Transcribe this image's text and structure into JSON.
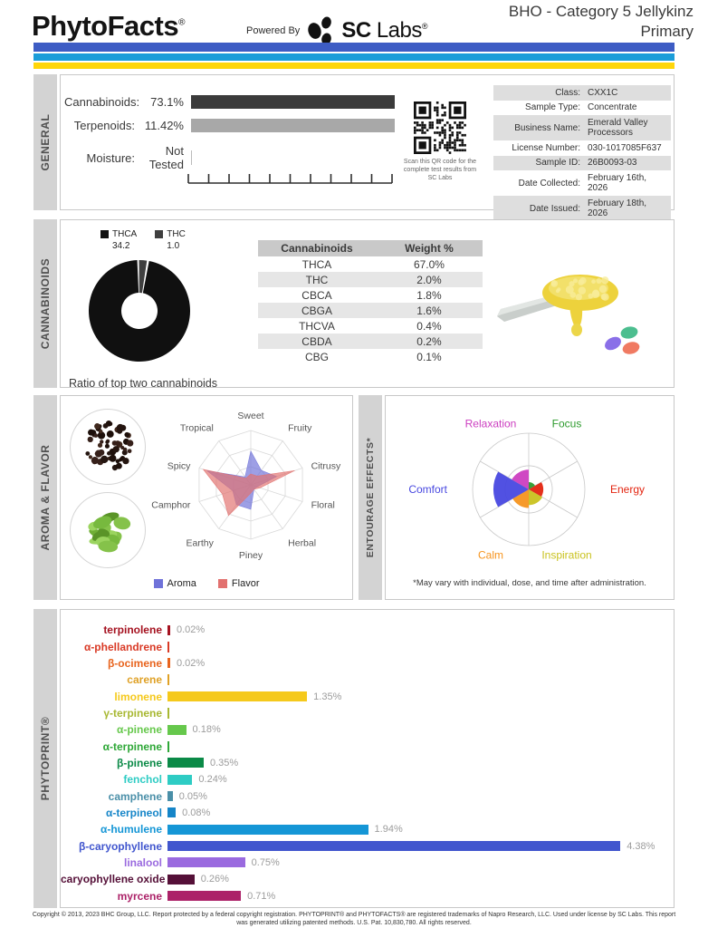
{
  "header": {
    "brand": "PhytoFacts",
    "brand_reg": "®",
    "powered_by": "Powered By",
    "lab_bold": "SC",
    "lab_rest": " Labs",
    "lab_reg": "®",
    "title_line1": "BHO - Category 5 Jellykinz",
    "title_line2": "Primary",
    "stripe_colors": [
      "#3D5CC4",
      "#1B9DD9",
      "#FFD60B"
    ]
  },
  "general": {
    "section_label": "GENERAL",
    "stats": [
      {
        "label": "Cannabinoids:",
        "value": "73.1%"
      },
      {
        "label": "Terpenoids:",
        "value": "11.42%"
      },
      {
        "label": "Moisture:",
        "value": "Not Tested"
      }
    ],
    "cannabinoids_bar_color": "#3B3B3B",
    "terpenoids_bar_color": "#A8A8A8",
    "qr_icon": "qr-code",
    "qr_caption": "Scan this QR code for the complete test results from SC Labs",
    "info": [
      {
        "label": "Class:",
        "value": "CXX1C"
      },
      {
        "label": "Sample Type:",
        "value": "Concentrate"
      },
      {
        "label": "Business Name:",
        "value": "Emerald Valley Processors"
      },
      {
        "label": "License Number:",
        "value": "030-1017085F637"
      },
      {
        "label": "Sample ID:",
        "value": "26B0093-03"
      },
      {
        "label": "Date Collected:",
        "value": "February 16th, 2026"
      },
      {
        "label": "Date Issued:",
        "value": "February 18th, 2026"
      }
    ]
  },
  "cannabinoids": {
    "section_label": "CANNABINOIDS",
    "donut_caption": "Ratio of top two cannabinoids",
    "legend": [
      {
        "name": "THCA",
        "value": "34.2",
        "color": "#101010"
      },
      {
        "name": "THC",
        "value": "1.0",
        "color": "#3F3F3F"
      }
    ],
    "table_headers": [
      "Cannabinoids",
      "Weight %"
    ],
    "table_rows": [
      [
        "THCA",
        "67.0%"
      ],
      [
        "THC",
        "2.0%"
      ],
      [
        "CBCA",
        "1.8%"
      ],
      [
        "CBGA",
        "1.6%"
      ],
      [
        "THCVA",
        "0.4%"
      ],
      [
        "CBDA",
        "0.2%"
      ],
      [
        "CBG",
        "0.1%"
      ]
    ],
    "photo": "concentrate-dab-on-tool",
    "logo": "jellybeans"
  },
  "aroma_flavor": {
    "section_label": "AROMA & FLAVOR",
    "images": [
      "peppercorns",
      "hops"
    ],
    "legend": [
      {
        "name": "Aroma",
        "color": "#6F72D9"
      },
      {
        "name": "Flavor",
        "color": "#E2716F"
      }
    ]
  },
  "entourage": {
    "section_label": "ENTOURAGE EFFECTS*",
    "footnote": "*May vary with individual, dose, and time after administration."
  },
  "phytoprint": {
    "section_label": "PHYTOPRINT®"
  },
  "footer": {
    "line1": "Copyright © 2013, 2023 BHC Group, LLC. Report protected by a federal copyright registration. PHYTOPRINT® and PHYTOFACTS® are registered trademarks of Napro Research, LLC. Used under license by SC Labs. This report",
    "line2": "was generated utilizing patented methods. U.S. Pat. 10,830,780. All rights reserved."
  },
  "chart_data": [
    {
      "id": "cannabinoid_ratio",
      "type": "pie",
      "title": "Ratio of top two cannabinoids",
      "donut": true,
      "series": [
        {
          "name": "THCA",
          "value": 34.2,
          "color": "#101010"
        },
        {
          "name": "THC",
          "value": 1.0,
          "color": "#3F3F3F"
        }
      ]
    },
    {
      "id": "aroma_flavor_radar",
      "type": "radar",
      "categories": [
        "Sweet",
        "Fruity",
        "Citrusy",
        "Floral",
        "Herbal",
        "Piney",
        "Earthy",
        "Camphor",
        "Spicy",
        "Tropical"
      ],
      "scale": [
        0,
        1
      ],
      "grid_levels": [
        0.3333,
        0.6667,
        1
      ],
      "series": [
        {
          "name": "Aroma",
          "color": "#6F72D9",
          "values": [
            0.62,
            0.33,
            0.5,
            0.12,
            0.1,
            0.45,
            0.45,
            0.35,
            0.85,
            0.18
          ]
        },
        {
          "name": "Flavor",
          "color": "#E2716F",
          "values": [
            0.2,
            0.2,
            0.85,
            0.18,
            0.1,
            0.15,
            0.7,
            0.55,
            0.92,
            0.15
          ]
        }
      ]
    },
    {
      "id": "entourage_effects",
      "type": "polar_wedge",
      "categories": [
        "Focus",
        "Energy",
        "Inspiration",
        "Calm",
        "Comfort",
        "Relaxation"
      ],
      "values": [
        0.13,
        0.26,
        0.28,
        0.33,
        0.63,
        0.35
      ],
      "colors": [
        "#2E9B2E",
        "#E3240F",
        "#C9C21F",
        "#F6941E",
        "#4848E0",
        "#CC3EC0"
      ],
      "scale": [
        0,
        1
      ],
      "grid_circles": [
        0.42,
        1
      ]
    },
    {
      "id": "phytoprint_terpenes",
      "type": "bar",
      "orientation": "horizontal",
      "unit": "%",
      "xlim": [
        0,
        4.5
      ],
      "items": [
        {
          "name": "terpinolene",
          "value": 0.02,
          "display": "0.02%",
          "color": "#A51220"
        },
        {
          "name": "α-phellandrene",
          "value": null,
          "display": "",
          "color": "#D93A26"
        },
        {
          "name": "β-ocimene",
          "value": 0.02,
          "display": "0.02%",
          "color": "#E8641E"
        },
        {
          "name": "carene",
          "value": null,
          "display": "",
          "color": "#DFA126"
        },
        {
          "name": "limonene",
          "value": 1.35,
          "display": "1.35%",
          "color": "#F5C91C"
        },
        {
          "name": "γ-terpinene",
          "value": null,
          "display": "",
          "color": "#A8B832"
        },
        {
          "name": "α-pinene",
          "value": 0.18,
          "display": "0.18%",
          "color": "#66C84C"
        },
        {
          "name": "α-terpinene",
          "value": null,
          "display": "",
          "color": "#2FA838"
        },
        {
          "name": "β-pinene",
          "value": 0.35,
          "display": "0.35%",
          "color": "#0B8A47"
        },
        {
          "name": "fenchol",
          "value": 0.24,
          "display": "0.24%",
          "color": "#2ECCC4"
        },
        {
          "name": "camphene",
          "value": 0.05,
          "display": "0.05%",
          "color": "#4A8FA8"
        },
        {
          "name": "α-terpineol",
          "value": 0.08,
          "display": "0.08%",
          "color": "#1585C8"
        },
        {
          "name": "α-humulene",
          "value": 1.94,
          "display": "1.94%",
          "color": "#1596D6"
        },
        {
          "name": "β-caryophyllene",
          "value": 4.38,
          "display": "4.38%",
          "color": "#4156CE"
        },
        {
          "name": "linalool",
          "value": 0.75,
          "display": "0.75%",
          "color": "#9A6ADF"
        },
        {
          "name": "caryophyllene oxide",
          "value": 0.26,
          "display": "0.26%",
          "color": "#551038"
        },
        {
          "name": "myrcene",
          "value": 0.71,
          "display": "0.71%",
          "color": "#AC2268"
        }
      ]
    }
  ]
}
